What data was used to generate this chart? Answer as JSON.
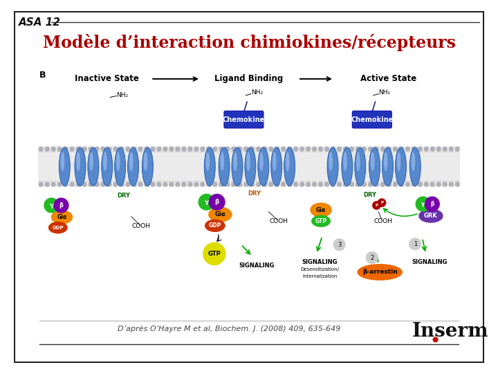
{
  "bg_color": "#ffffff",
  "border_color": "#222222",
  "header_text": "ASA 12",
  "header_color": "#111111",
  "header_fontsize": 11,
  "title_text": "Modèle d’interaction chimiokines/récepteurs",
  "title_color": "#aa0000",
  "title_fontsize": 17,
  "footer_text": "D’après O’Hayre M et al, Biochem. J. (2008) 409, 635-649",
  "footer_fontsize": 8,
  "footer_color": "#444444",
  "inserm_text": "Inserm",
  "inserm_fontsize": 20,
  "inserm_color": "#111111",
  "dot_color": "#cc0000",
  "line_color": "#333333",
  "label_B": "B",
  "inactive_label": "Inactive State",
  "ligand_label": "Ligand Binding",
  "active_label": "Active State",
  "nh2": "NH₂",
  "chemokine": "Chemokine",
  "dry": "DRY",
  "cooh": "COOH",
  "gial": "Giα",
  "gdp": "GDP",
  "gtp": "GTP",
  "grk": "GRK",
  "beta_arr": "β-arrestin",
  "signaling": "SIGNALING",
  "desens": "Desensitization/",
  "intern": "Internalization",
  "gamma": "γ",
  "beta": "β"
}
